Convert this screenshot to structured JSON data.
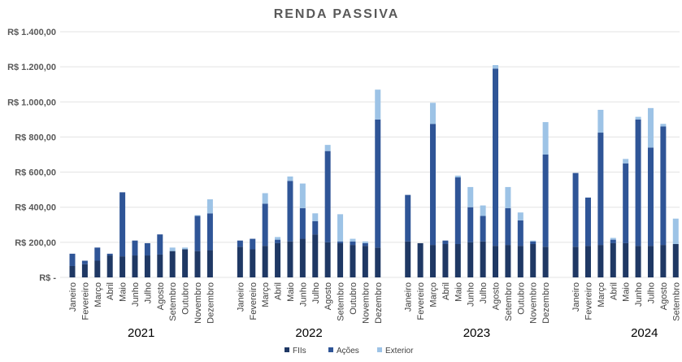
{
  "chart_data": {
    "type": "bar",
    "stacked": true,
    "title": "RENDA PASSIVA",
    "ylim": [
      0,
      1400
    ],
    "yticks": [
      0,
      200,
      400,
      600,
      800,
      1000,
      1200,
      1400
    ],
    "ytick_labels": [
      "R$ -",
      "R$ 200,00",
      "R$ 400,00",
      "R$ 600,00",
      "R$ 800,00",
      "R$ 1.000,00",
      "R$ 1.200,00",
      "R$ 1.400,00"
    ],
    "grid": true,
    "legend_position": "bottom",
    "months": [
      "Janeiro",
      "Fevereiro",
      "Março",
      "Abril",
      "Maio",
      "Junho",
      "Julho",
      "Agosto",
      "Setembro",
      "Outubro",
      "Novembro",
      "Dezembro"
    ],
    "years": [
      "2021",
      "2022",
      "2023",
      "2024"
    ],
    "series": [
      {
        "name": "FIIs",
        "color": "#1f3864",
        "values": [
          [
            65,
            75,
            95,
            125,
            120,
            125,
            125,
            130,
            150,
            160,
            150,
            155
          ],
          [
            175,
            160,
            180,
            195,
            205,
            220,
            245,
            200,
            195,
            185,
            180,
            170
          ],
          [
            205,
            195,
            185,
            190,
            190,
            200,
            205,
            180,
            185,
            180,
            190,
            175
          ],
          [
            175,
            180,
            185,
            195,
            195,
            180,
            180,
            185,
            190,
            0,
            0,
            0
          ]
        ]
      },
      {
        "name": "Ações",
        "color": "#2f5597",
        "values": [
          [
            70,
            20,
            75,
            10,
            365,
            85,
            70,
            115,
            0,
            0,
            200,
            210
          ],
          [
            35,
            60,
            240,
            20,
            345,
            175,
            75,
            520,
            10,
            20,
            15,
            730
          ],
          [
            265,
            0,
            690,
            20,
            380,
            200,
            145,
            1010,
            210,
            145,
            15,
            525
          ],
          [
            420,
            275,
            640,
            20,
            455,
            720,
            560,
            675,
            0,
            0,
            0,
            0
          ]
        ]
      },
      {
        "name": "Exterior",
        "color": "#9dc3e6",
        "values": [
          [
            0,
            0,
            0,
            0,
            0,
            0,
            0,
            0,
            20,
            10,
            5,
            80
          ],
          [
            0,
            0,
            60,
            15,
            25,
            140,
            45,
            35,
            155,
            15,
            10,
            170
          ],
          [
            0,
            0,
            120,
            0,
            10,
            115,
            60,
            20,
            120,
            45,
            5,
            185
          ],
          [
            0,
            0,
            130,
            10,
            25,
            15,
            225,
            15,
            145,
            0,
            0,
            0
          ]
        ]
      }
    ]
  }
}
